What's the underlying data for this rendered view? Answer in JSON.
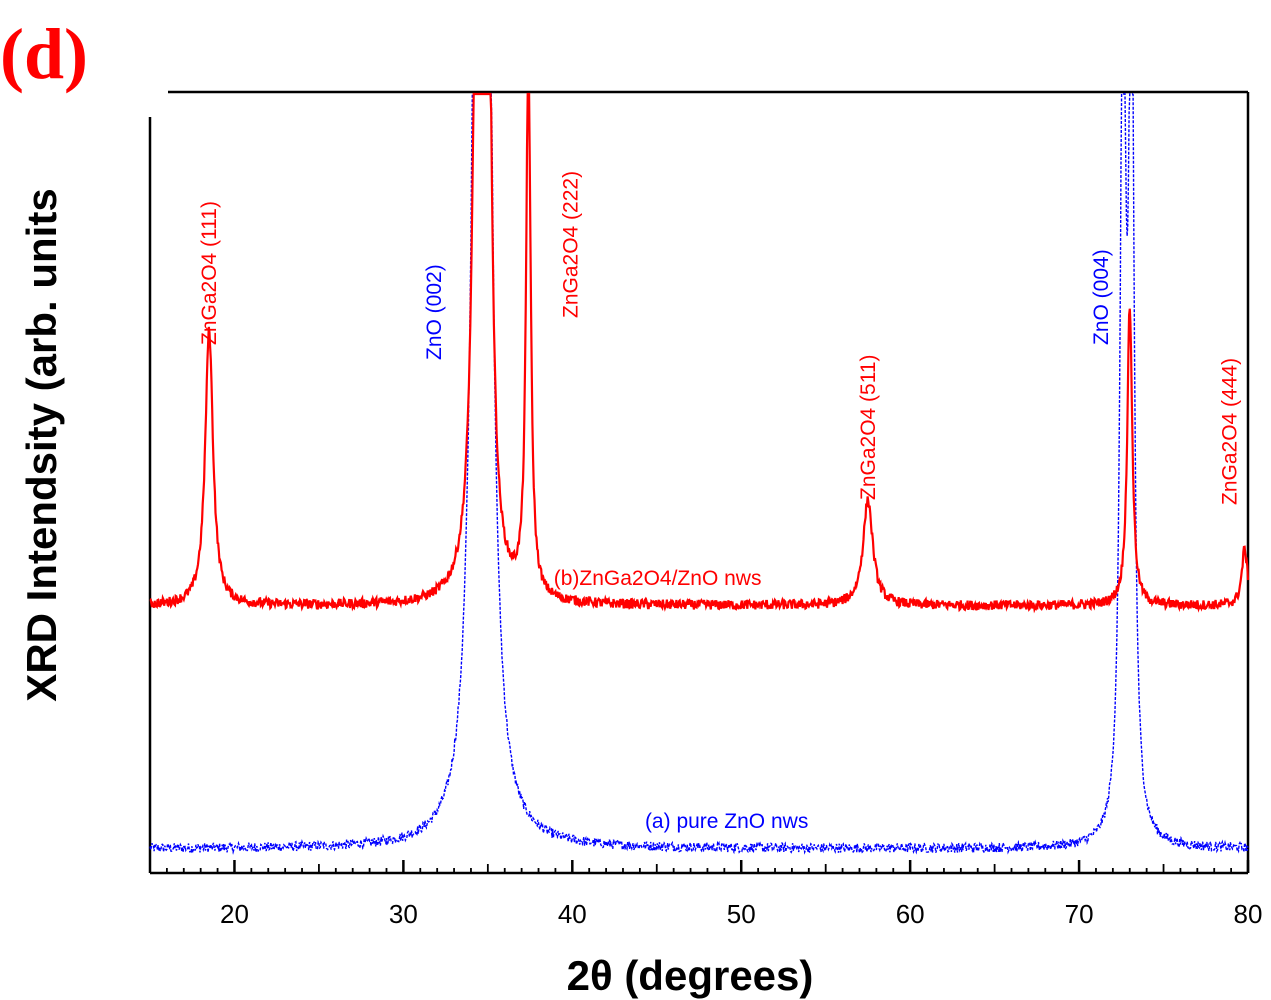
{
  "panel_label": "(d)",
  "chart_data": {
    "type": "line",
    "title": "",
    "xlabel": "2θ (degrees)",
    "ylabel": "XRD Intendsity (arb. units",
    "xlim": [
      15,
      80
    ],
    "xticks": [
      20,
      30,
      40,
      50,
      60,
      70,
      80
    ],
    "y_scale": "arbitrary units, no tick labels",
    "grid": false,
    "colors": {
      "pure_zno": "#0000ff",
      "zga_zno": "#ff0000",
      "text": "#ff0000"
    },
    "series": [
      {
        "name": "(a) pure ZnO nws",
        "color": "#0000ff",
        "line_style": "dotted",
        "baseline": 0.03,
        "peaks": [
          {
            "x": 34.4,
            "height": 1.35,
            "width": 0.35
          },
          {
            "x": 34.9,
            "height": 1.35,
            "width": 0.35
          },
          {
            "x": 72.6,
            "height": 1.1,
            "width": 0.18
          },
          {
            "x": 73.1,
            "height": 1.1,
            "width": 0.18
          }
        ]
      },
      {
        "name": "(b)ZnGa2O4/ZnO nws",
        "color": "#ff0000",
        "line_style": "solid",
        "baseline": 0.33,
        "peaks": [
          {
            "x": 18.5,
            "height": 0.34,
            "width": 0.28
          },
          {
            "x": 34.4,
            "height": 0.95,
            "width": 0.3
          },
          {
            "x": 35.0,
            "height": 0.8,
            "width": 0.25
          },
          {
            "x": 37.4,
            "height": 0.68,
            "width": 0.16
          },
          {
            "x": 57.5,
            "height": 0.13,
            "width": 0.35
          },
          {
            "x": 73.0,
            "height": 0.37,
            "width": 0.18
          },
          {
            "x": 79.8,
            "height": 0.07,
            "width": 0.2
          }
        ]
      }
    ],
    "peak_labels": [
      {
        "text": "ZnGa2O4 (111)",
        "x": 18.5,
        "color": "#ff0000"
      },
      {
        "text": "ZnO (002)",
        "x": 31.8,
        "color": "#0000ff"
      },
      {
        "text": "ZnGa2O4 (222)",
        "x": 39.9,
        "color": "#ff0000"
      },
      {
        "text": "ZnGa2O4 (511)",
        "x": 57.5,
        "color": "#ff0000"
      },
      {
        "text": "ZnO (004)",
        "x": 71.3,
        "color": "#0000ff"
      },
      {
        "text": "ZnGa2O4 (444)",
        "x": 78.9,
        "color": "#ff0000"
      }
    ],
    "annotations": [
      {
        "text": "(b)ZnGa2O4/ZnO nws",
        "series": 1,
        "color": "#ff0000"
      },
      {
        "text": "(a) pure ZnO nws",
        "series": 0,
        "color": "#0000ff"
      }
    ]
  }
}
